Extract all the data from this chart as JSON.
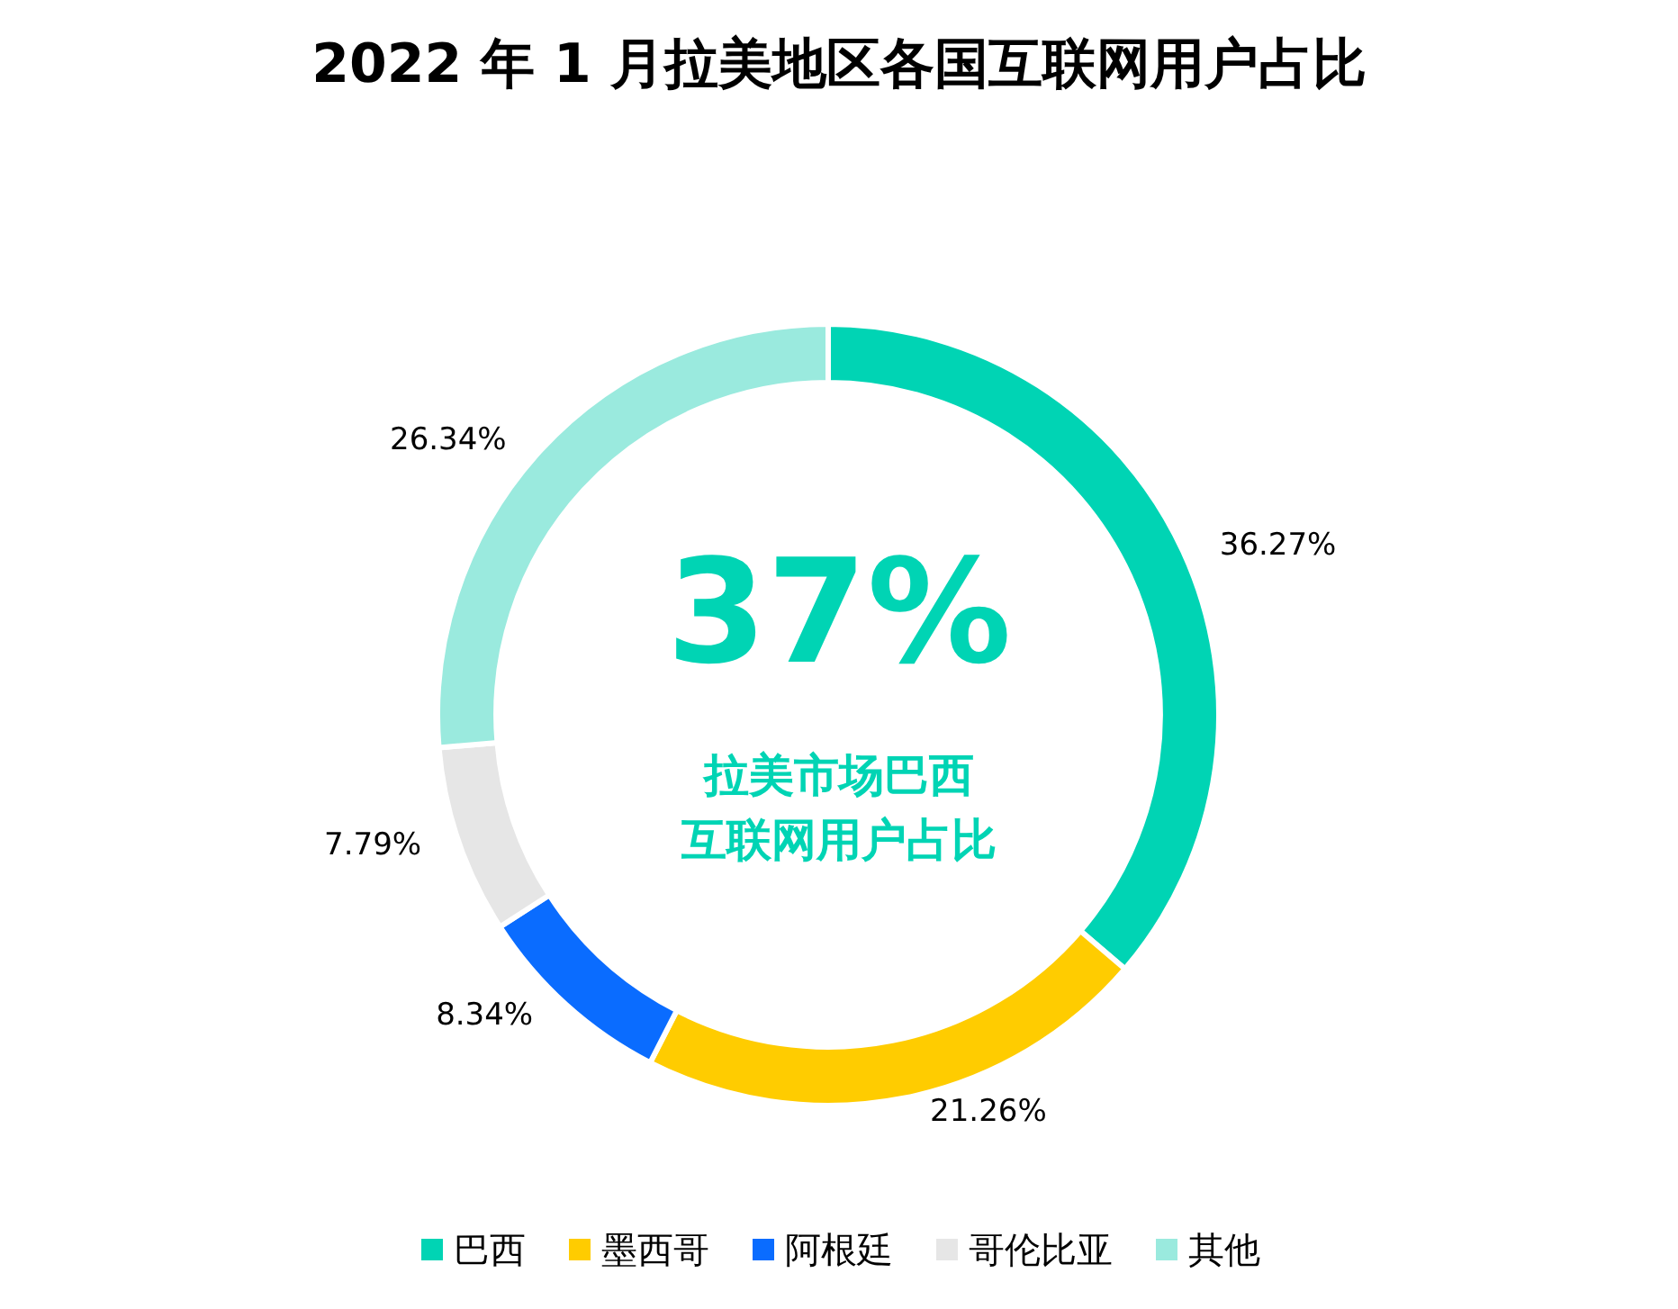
{
  "chart_data": {
    "type": "donut",
    "title": "2022 年 1 月拉美地区各国互联网用户占比",
    "categories": [
      "巴西",
      "墨西哥",
      "阿根廷",
      "哥伦比亚",
      "其他"
    ],
    "values": [
      36.27,
      21.26,
      8.34,
      7.79,
      26.34
    ],
    "value_labels": [
      "36.27%",
      "21.26%",
      "8.34%",
      "7.79%",
      "26.34%"
    ],
    "colors": [
      "#00d4b4",
      "#ffcc00",
      "#0a6cff",
      "#e6e6e6",
      "#9aeade"
    ],
    "annotations": [
      "37%",
      "拉美市场巴西",
      "互联网用户占比"
    ],
    "legend": "bottom"
  }
}
